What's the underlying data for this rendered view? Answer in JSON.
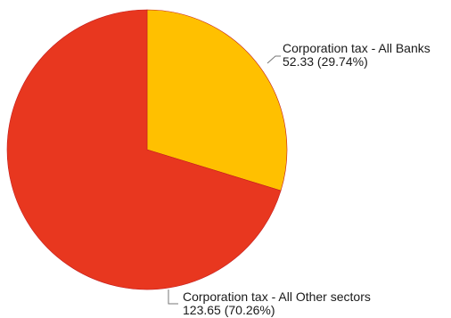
{
  "chart_data": {
    "type": "pie",
    "title": "",
    "slices": [
      {
        "name": "Corporation tax - All Banks",
        "value_text": "52.33 (29.74%)",
        "value": 52.33,
        "percent": 29.74,
        "color": "#ffc000"
      },
      {
        "name": "Corporation tax - All Other sectors",
        "value_text": "123.65 (70.26%)",
        "value": 123.65,
        "percent": 70.26,
        "color": "#e8371f"
      }
    ],
    "legend": "none",
    "start_angle": "12 o'clock, clockwise"
  }
}
